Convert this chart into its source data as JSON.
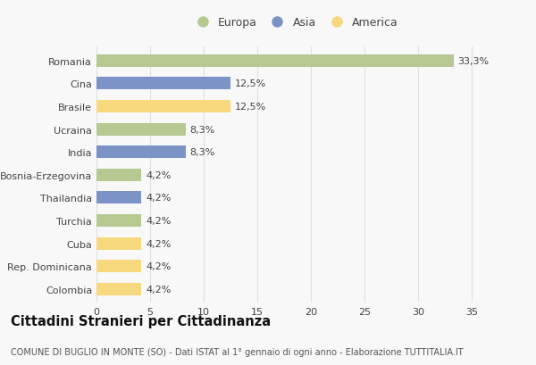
{
  "categories": [
    "Romania",
    "Cina",
    "Brasile",
    "Ucraina",
    "India",
    "Bosnia-Erzegovina",
    "Thailandia",
    "Turchia",
    "Cuba",
    "Rep. Dominicana",
    "Colombia"
  ],
  "values": [
    33.3,
    12.5,
    12.5,
    8.3,
    8.3,
    4.2,
    4.2,
    4.2,
    4.2,
    4.2,
    4.2
  ],
  "labels": [
    "33,3%",
    "12,5%",
    "12,5%",
    "8,3%",
    "8,3%",
    "4,2%",
    "4,2%",
    "4,2%",
    "4,2%",
    "4,2%",
    "4,2%"
  ],
  "continents": [
    "Europa",
    "Asia",
    "America",
    "Europa",
    "Asia",
    "Europa",
    "Asia",
    "Europa",
    "America",
    "America",
    "America"
  ],
  "colors": {
    "Europa": "#b5c990",
    "Asia": "#7b93c7",
    "America": "#f7d87c"
  },
  "xlim": [
    0,
    37
  ],
  "xticks": [
    0,
    5,
    10,
    15,
    20,
    25,
    30,
    35
  ],
  "title": "Cittadini Stranieri per Cittadinanza",
  "subtitle": "COMUNE DI BUGLIO IN MONTE (SO) - Dati ISTAT al 1° gennaio di ogni anno - Elaborazione TUTTITALIA.IT",
  "background_color": "#f8f8f8",
  "plot_bg_color": "#f8f8f8",
  "bar_height": 0.55,
  "grid_color": "#e0e0e0",
  "label_fontsize": 8,
  "tick_fontsize": 8,
  "ytick_fontsize": 8,
  "title_fontsize": 10.5,
  "subtitle_fontsize": 7,
  "legend_fontsize": 9
}
